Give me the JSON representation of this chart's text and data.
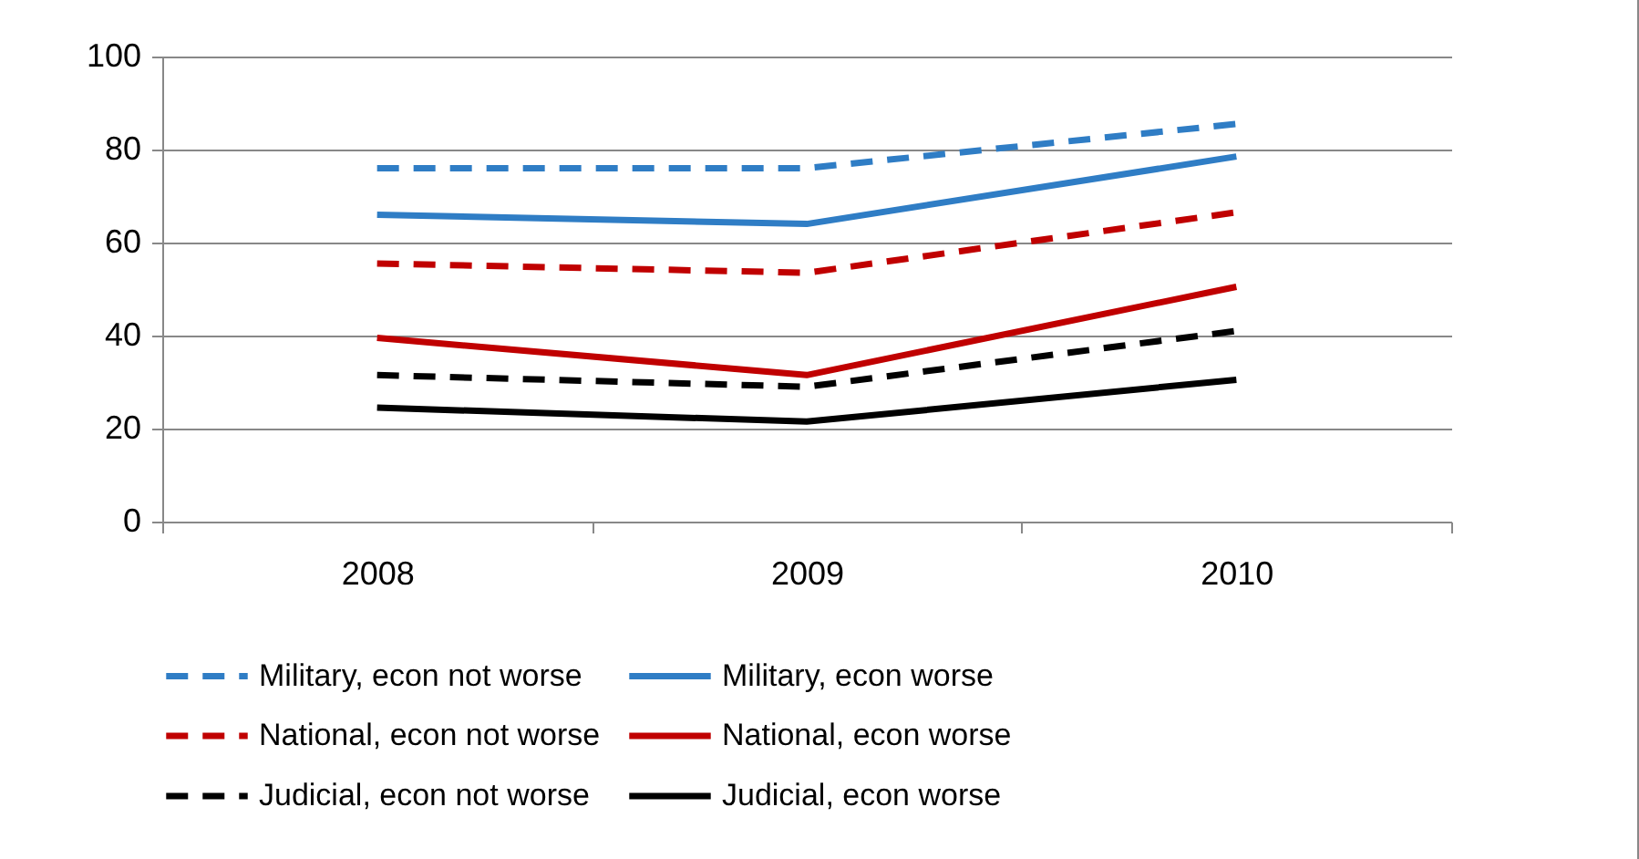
{
  "chart_data": {
    "type": "line",
    "categories": [
      "2008",
      "2009",
      "2010"
    ],
    "ylim": [
      0,
      100
    ],
    "yticks": [
      0,
      20,
      40,
      60,
      80,
      100
    ],
    "grid": "y",
    "legend": "bottom",
    "marker": "none",
    "series": [
      {
        "name": "Military, econ not worse",
        "color": "#2f7dc5",
        "line_style": "dashed",
        "values": [
          76,
          76,
          85.5
        ]
      },
      {
        "name": "Military, econ worse",
        "color": "#2f7dc5",
        "line_style": "solid",
        "values": [
          66,
          64,
          78.5
        ]
      },
      {
        "name": "National, econ not worse",
        "color": "#c00000",
        "line_style": "dashed",
        "values": [
          55.5,
          53.5,
          66.5
        ]
      },
      {
        "name": "National, econ worse",
        "color": "#c00000",
        "line_style": "solid",
        "values": [
          39.5,
          31.5,
          50.5
        ]
      },
      {
        "name": "Judicial, econ not worse",
        "color": "#000000",
        "line_style": "dashed",
        "values": [
          31.5,
          29,
          41
        ]
      },
      {
        "name": "Judicial, econ worse",
        "color": "#000000",
        "line_style": "solid",
        "values": [
          24.5,
          21.5,
          30.5
        ]
      }
    ]
  }
}
